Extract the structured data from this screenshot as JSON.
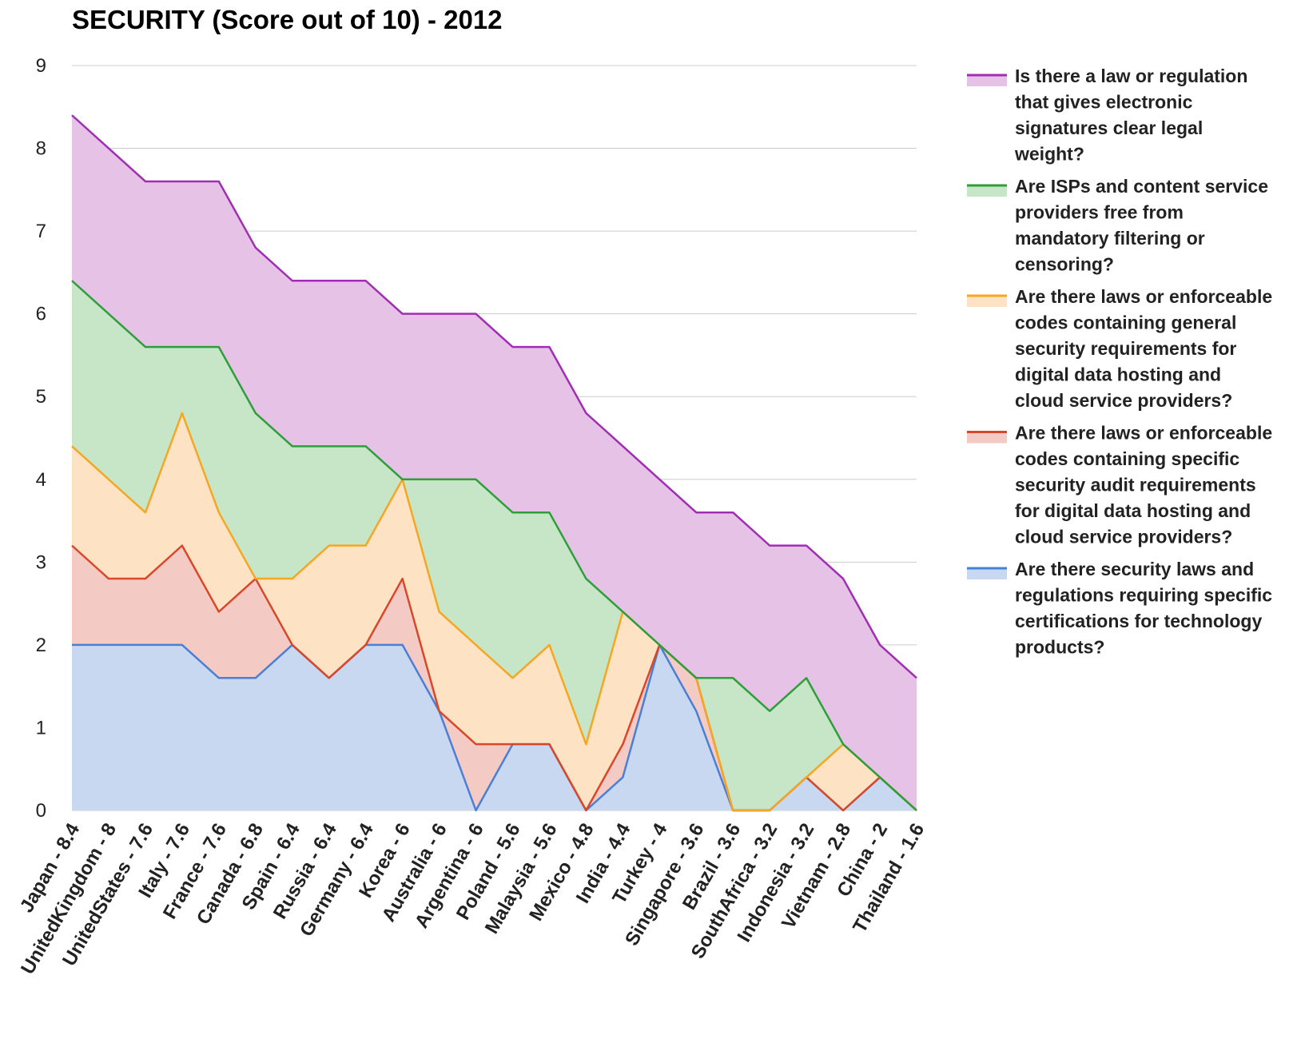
{
  "chart_data": {
    "type": "area",
    "stacked": true,
    "title": "SECURITY (Score out of 10) - 2012",
    "xlabel": "",
    "ylabel": "",
    "ylim": [
      0,
      9
    ],
    "yticks": [
      "0",
      "1",
      "2",
      "3",
      "4",
      "5",
      "6",
      "7",
      "8",
      "9"
    ],
    "grid": true,
    "legend_position": "right",
    "categories": [
      "Japan - 8.4",
      "UnitedKingdom - 8",
      "UnitedStates - 7.6",
      "Italy - 7.6",
      "France - 7.6",
      "Canada - 6.8",
      "Spain - 6.4",
      "Russia - 6.4",
      "Germany - 6.4",
      "Korea - 6",
      "Australia - 6",
      "Argentina - 6",
      "Poland - 5.6",
      "Malaysia - 5.6",
      "Mexico - 4.8",
      "India - 4.4",
      "Turkey - 4",
      "Singapore - 3.6",
      "Brazil - 3.6",
      "SouthAfrica - 3.2",
      "Indonesia - 3.2",
      "Vietnam - 2.8",
      "China - 2",
      "Thailand - 1.6"
    ],
    "series": [
      {
        "name_lines": [
          "Are there security laws and",
          "regulations requiring specific",
          "certifications for technology",
          "products?"
        ],
        "line_color": "#4a7fd6",
        "fill_color": "#c9d8f1",
        "values": [
          2,
          2,
          2,
          2,
          1.6,
          1.6,
          2,
          1.6,
          2,
          2,
          1.2,
          0,
          0.8,
          0.8,
          0,
          0.4,
          2,
          1.2,
          0,
          0,
          0.4,
          0,
          0.4,
          0
        ]
      },
      {
        "name_lines": [
          "Are there laws or enforceable",
          "codes containing specific",
          "security audit requirements",
          "for digital data hosting and",
          "cloud service providers?"
        ],
        "line_color": "#d9472b",
        "fill_color": "#f4cbc4",
        "values": [
          1.2,
          0.8,
          0.8,
          1.2,
          0.8,
          1.2,
          0,
          0,
          0,
          0.8,
          0,
          0.8,
          0,
          0,
          0,
          0.4,
          0,
          0.4,
          0,
          0,
          0,
          0,
          0,
          0
        ]
      },
      {
        "name_lines": [
          "Are there laws or enforceable",
          "codes containing general",
          "security requirements for",
          "digital data hosting and",
          "cloud service providers?"
        ],
        "line_color": "#f5a623",
        "fill_color": "#fde3c4",
        "values": [
          1.2,
          1.2,
          0.8,
          1.6,
          1.2,
          0,
          0.8,
          1.6,
          1.2,
          1.2,
          1.2,
          1.2,
          0.8,
          1.2,
          0.8,
          1.6,
          0,
          0,
          0,
          0,
          0,
          0.8,
          0,
          0
        ]
      },
      {
        "name_lines": [
          "Are ISPs and content service",
          "providers free from",
          "mandatory filtering or",
          "censoring?"
        ],
        "line_color": "#2e9e3b",
        "fill_color": "#c6e6c7",
        "values": [
          2,
          2,
          2,
          0.8,
          2,
          2,
          1.6,
          1.2,
          1.2,
          0,
          1.6,
          2,
          2,
          1.6,
          2,
          0,
          0,
          0,
          1.6,
          1.2,
          1.2,
          0,
          0,
          0
        ]
      },
      {
        "name_lines": [
          "Is there a law or regulation",
          "that gives electronic",
          "signatures clear legal",
          "weight?"
        ],
        "line_color": "#a12db5",
        "fill_color": "#e6c2e6",
        "values": [
          2,
          2,
          2,
          2,
          2.0,
          2,
          2,
          2,
          2,
          2,
          2,
          2,
          2,
          2,
          2,
          2,
          2,
          2,
          2,
          2,
          1.6,
          2,
          1.6,
          1.6
        ]
      }
    ]
  }
}
